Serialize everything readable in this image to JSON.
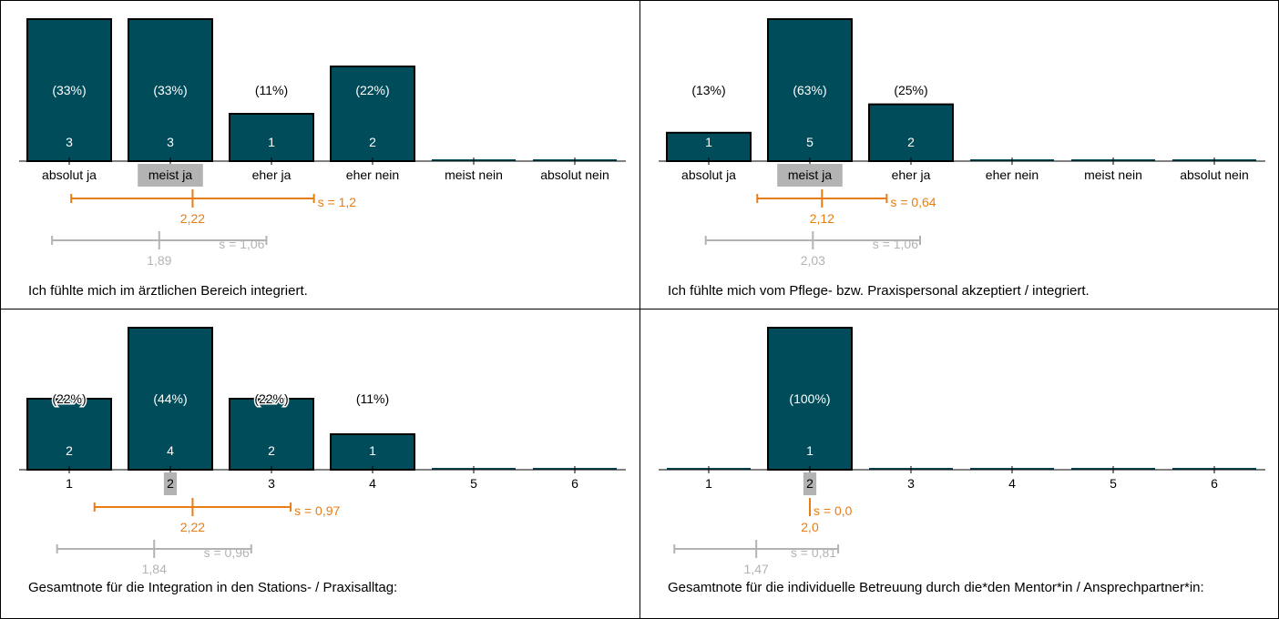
{
  "colors": {
    "bar": "#004c5a",
    "bar_edge": "#000000",
    "mean_self": "#e87d14",
    "mean_ref": "#b3b3b3",
    "median_highlight": "#b3b3b3",
    "label_light": "#ffffff",
    "label_dark": "#000000"
  },
  "panels": [
    {
      "question": "Ich fühlte mich im ärztlichen Bereich integriert."
    },
    {
      "question": "Ich fühlte mich vom Pflege- bzw. Praxispersonal akzeptiert / integriert."
    },
    {
      "question": "Gesamtnote für die Integration in den Stations- / Praxisalltag:"
    },
    {
      "question": "Gesamtnote für die individuelle Betreuung durch die*den Mentor*in / Ansprechpartner*in:"
    }
  ],
  "chart_data": [
    {
      "type": "bar",
      "categories": [
        "absolut ja",
        "meist ja",
        "eher ja",
        "eher nein",
        "meist nein",
        "absolut nein"
      ],
      "values": [
        3,
        3,
        1,
        2,
        0,
        0
      ],
      "percent_labels": [
        "(33%)",
        "(33%)",
        "(11%)",
        "(22%)",
        "",
        ""
      ],
      "count_labels": [
        "3",
        "3",
        "1",
        "2",
        "",
        ""
      ],
      "ymax": 3,
      "median_category_index": 1,
      "mean": {
        "value": 2.22,
        "label": "2,22",
        "sd": 1.2,
        "sd_label": "s = 1,2"
      },
      "reference_mean": {
        "value": 1.89,
        "label": "1,89",
        "sd": 1.06,
        "sd_label": "s = 1,06"
      }
    },
    {
      "type": "bar",
      "categories": [
        "absolut ja",
        "meist ja",
        "eher ja",
        "eher nein",
        "meist nein",
        "absolut nein"
      ],
      "values": [
        1,
        5,
        2,
        0,
        0,
        0
      ],
      "percent_labels": [
        "(13%)",
        "(63%)",
        "(25%)",
        "",
        "",
        ""
      ],
      "count_labels": [
        "1",
        "5",
        "2",
        "",
        "",
        ""
      ],
      "ymax": 5,
      "median_category_index": 1,
      "mean": {
        "value": 2.12,
        "label": "2,12",
        "sd": 0.64,
        "sd_label": "s = 0,64"
      },
      "reference_mean": {
        "value": 2.03,
        "label": "2,03",
        "sd": 1.06,
        "sd_label": "s = 1,06"
      }
    },
    {
      "type": "bar",
      "categories": [
        "1",
        "2",
        "3",
        "4",
        "5",
        "6"
      ],
      "values": [
        2,
        4,
        2,
        1,
        0,
        0
      ],
      "percent_labels": [
        "(22%)",
        "(44%)",
        "(22%)",
        "(11%)",
        "",
        ""
      ],
      "count_labels": [
        "2",
        "4",
        "2",
        "1",
        "",
        ""
      ],
      "ymax": 4,
      "median_category_index": 1,
      "mean": {
        "value": 2.22,
        "label": "2,22",
        "sd": 0.97,
        "sd_label": "s = 0,97"
      },
      "reference_mean": {
        "value": 1.84,
        "label": "1,84",
        "sd": 0.96,
        "sd_label": "s = 0,96"
      }
    },
    {
      "type": "bar",
      "categories": [
        "1",
        "2",
        "3",
        "4",
        "5",
        "6"
      ],
      "values": [
        0,
        1,
        0,
        0,
        0,
        0
      ],
      "percent_labels": [
        "",
        "(100%)",
        "",
        "",
        "",
        ""
      ],
      "count_labels": [
        "",
        "1",
        "",
        "",
        "",
        ""
      ],
      "ymax": 1,
      "median_category_index": 1,
      "mean": {
        "value": 2.0,
        "label": "2,0",
        "sd": 0.0,
        "sd_label": "s = 0,0"
      },
      "reference_mean": {
        "value": 1.47,
        "label": "1,47",
        "sd": 0.81,
        "sd_label": "s = 0,81"
      }
    }
  ]
}
